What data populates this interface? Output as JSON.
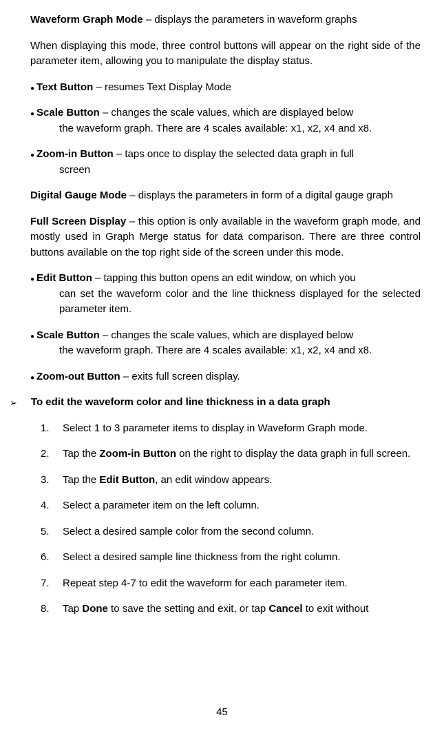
{
  "s1": {
    "title": "Waveform Graph Mode",
    "desc": "– displays the parameters in waveform graphs"
  },
  "p1": "When displaying this mode, three control buttons will appear on the right side of the parameter item, allowing you to manipulate the display status.",
  "b1": {
    "t": "Text Button",
    "d": "– resumes Text Display Mode"
  },
  "b2": {
    "t": "Scale Button",
    "d": "– changes the scale values, which are displayed below the waveform graph. There are 4 scales available: x1, x2, x4 and x8."
  },
  "b3": {
    "t": "Zoom-in Button",
    "d": "– taps once to display the selected data graph in full screen"
  },
  "s2": {
    "title": "Digital Gauge Mode",
    "desc": "– displays the parameters in form of a digital gauge graph"
  },
  "s3": {
    "title": "Full Screen Display",
    "desc": "– this option is only available in the waveform graph mode, and mostly used in Graph Merge status for data comparison. There are three control buttons available on the top right side of the screen under this mode."
  },
  "b4": {
    "t": "Edit Button",
    "d": "– tapping this button opens an edit window, on which you can set the waveform color and the line thickness displayed for the selected parameter item."
  },
  "b5": {
    "t": "Scale Button",
    "d": "– changes the scale values, which are displayed below the waveform graph. There are 4 scales available: x1, x2, x4 and x8."
  },
  "b6": {
    "t": "Zoom-out Button",
    "d": "– exits full screen display."
  },
  "tri": "To edit the waveform color and line thickness in a data graph",
  "steps": {
    "n1": "Select 1 to 3 parameter items to display in Waveform Graph mode.",
    "n2a": "Tap the ",
    "n2b": "Zoom-in Button",
    "n2c": " on the right to display the data graph in full screen.",
    "n3a": "Tap the ",
    "n3b": "Edit Button",
    "n3c": ", an edit window appears.",
    "n4": "Select a parameter item on the left column.",
    "n5": "Select a desired sample color from the second column.",
    "n6": "Select a desired sample line thickness from the right column.",
    "n7": "Repeat step 4-7 to edit the waveform for each parameter item.",
    "n8a": "Tap ",
    "n8b": "Done",
    "n8c": " to save the setting and exit, or tap ",
    "n8d": "Cancel",
    "n8e": " to exit without"
  },
  "page": "45"
}
